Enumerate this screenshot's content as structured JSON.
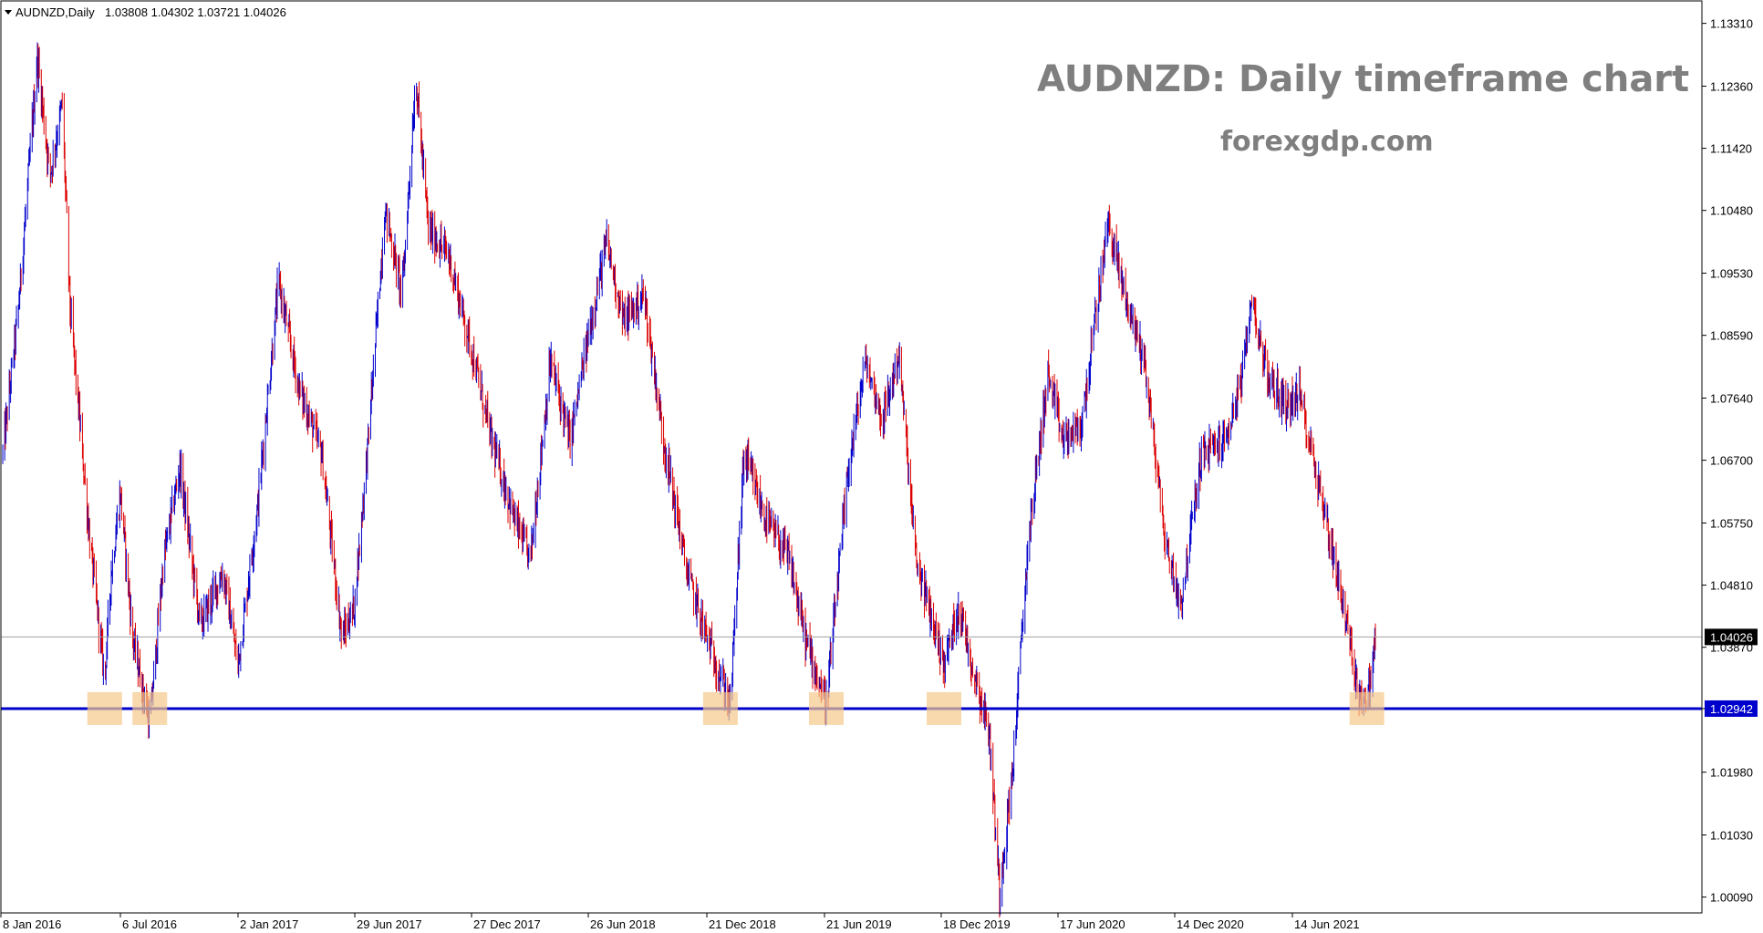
{
  "header": {
    "symbol": "AUDNZD,Daily",
    "ohlc": "1.03808 1.04302 1.03721 1.04026"
  },
  "annotation": {
    "title": "AUDNZD: Daily timeframe chart",
    "subtitle": "forexgdp.com"
  },
  "colors": {
    "bull": "#0000cc",
    "bear": "#dd0000",
    "support_line": "#0000cc",
    "current_line": "#a0a0a0",
    "highlight": "#f5c98a",
    "title_gray": "#7f7f7f"
  },
  "chart_data": {
    "type": "candlestick",
    "symbol": "AUDNZD",
    "timeframe": "Daily",
    "ylim": [
      0.9985,
      1.1365
    ],
    "y_ticks": [
      "1.13310",
      "1.12360",
      "1.11420",
      "1.10480",
      "1.09530",
      "1.08590",
      "1.07640",
      "1.06700",
      "1.05750",
      "1.04810",
      "1.03870",
      "1.02942",
      "1.01980",
      "1.01030",
      "1.00090"
    ],
    "x_ticks": [
      "8 Jan 2016",
      "6 Jul 2016",
      "2 Jan 2017",
      "29 Jun 2017",
      "27 Dec 2017",
      "26 Jun 2018",
      "21 Dec 2018",
      "21 Jun 2019",
      "18 Dec 2019",
      "17 Jun 2020",
      "14 Dec 2020",
      "14 Jun 2021"
    ],
    "current_price": {
      "value": 1.04026,
      "label": "1.04026"
    },
    "support_level": {
      "value": 1.02942,
      "label": "1.02942"
    },
    "price_path": [
      {
        "date": "2016-01-08",
        "price": 1.068
      },
      {
        "date": "2016-02-01",
        "price": 1.09
      },
      {
        "date": "2016-03-01",
        "price": 1.128
      },
      {
        "date": "2016-03-20",
        "price": 1.11
      },
      {
        "date": "2016-04-08",
        "price": 1.121
      },
      {
        "date": "2016-04-20",
        "price": 1.09
      },
      {
        "date": "2016-05-20",
        "price": 1.055
      },
      {
        "date": "2016-06-12",
        "price": 1.034
      },
      {
        "date": "2016-06-22",
        "price": 1.05
      },
      {
        "date": "2016-07-06",
        "price": 1.062
      },
      {
        "date": "2016-07-25",
        "price": 1.04
      },
      {
        "date": "2016-08-20",
        "price": 1.027
      },
      {
        "date": "2016-09-10",
        "price": 1.052
      },
      {
        "date": "2016-10-05",
        "price": 1.066
      },
      {
        "date": "2016-11-05",
        "price": 1.042
      },
      {
        "date": "2016-12-10",
        "price": 1.05
      },
      {
        "date": "2017-01-02",
        "price": 1.036
      },
      {
        "date": "2017-02-01",
        "price": 1.06
      },
      {
        "date": "2017-03-05",
        "price": 1.094
      },
      {
        "date": "2017-04-05",
        "price": 1.078
      },
      {
        "date": "2017-05-10",
        "price": 1.068
      },
      {
        "date": "2017-06-10",
        "price": 1.04
      },
      {
        "date": "2017-06-29",
        "price": 1.045
      },
      {
        "date": "2017-07-20",
        "price": 1.07
      },
      {
        "date": "2017-08-15",
        "price": 1.105
      },
      {
        "date": "2017-09-10",
        "price": 1.092
      },
      {
        "date": "2017-10-01",
        "price": 1.125
      },
      {
        "date": "2017-10-20",
        "price": 1.102
      },
      {
        "date": "2017-11-20",
        "price": 1.098
      },
      {
        "date": "2017-12-27",
        "price": 1.083
      },
      {
        "date": "2018-01-25",
        "price": 1.07
      },
      {
        "date": "2018-03-01",
        "price": 1.058
      },
      {
        "date": "2018-03-25",
        "price": 1.052
      },
      {
        "date": "2018-04-25",
        "price": 1.082
      },
      {
        "date": "2018-05-25",
        "price": 1.07
      },
      {
        "date": "2018-06-26",
        "price": 1.088
      },
      {
        "date": "2018-07-20",
        "price": 1.1
      },
      {
        "date": "2018-08-15",
        "price": 1.088
      },
      {
        "date": "2018-09-15",
        "price": 1.092
      },
      {
        "date": "2018-10-15",
        "price": 1.07
      },
      {
        "date": "2018-11-20",
        "price": 1.05
      },
      {
        "date": "2018-12-21",
        "price": 1.04
      },
      {
        "date": "2019-01-25",
        "price": 1.03
      },
      {
        "date": "2019-02-15",
        "price": 1.068
      },
      {
        "date": "2019-03-20",
        "price": 1.058
      },
      {
        "date": "2019-04-25",
        "price": 1.052
      },
      {
        "date": "2019-05-20",
        "price": 1.04
      },
      {
        "date": "2019-06-21",
        "price": 1.03
      },
      {
        "date": "2019-07-25",
        "price": 1.066
      },
      {
        "date": "2019-08-20",
        "price": 1.082
      },
      {
        "date": "2019-09-15",
        "price": 1.073
      },
      {
        "date": "2019-10-10",
        "price": 1.083
      },
      {
        "date": "2019-11-05",
        "price": 1.052
      },
      {
        "date": "2019-12-18",
        "price": 1.036
      },
      {
        "date": "2020-01-10",
        "price": 1.045
      },
      {
        "date": "2020-01-30",
        "price": 1.036
      },
      {
        "date": "2020-02-25",
        "price": 1.026
      },
      {
        "date": "2020-03-12",
        "price": 1.002
      },
      {
        "date": "2020-04-01",
        "price": 1.02
      },
      {
        "date": "2020-04-25",
        "price": 1.055
      },
      {
        "date": "2020-05-25",
        "price": 1.08
      },
      {
        "date": "2020-06-17",
        "price": 1.07
      },
      {
        "date": "2020-07-15",
        "price": 1.072
      },
      {
        "date": "2020-08-25",
        "price": 1.103
      },
      {
        "date": "2020-09-20",
        "price": 1.092
      },
      {
        "date": "2020-10-20",
        "price": 1.082
      },
      {
        "date": "2020-11-20",
        "price": 1.055
      },
      {
        "date": "2020-12-14",
        "price": 1.045
      },
      {
        "date": "2021-01-15",
        "price": 1.068
      },
      {
        "date": "2021-02-20",
        "price": 1.07
      },
      {
        "date": "2021-03-20",
        "price": 1.08
      },
      {
        "date": "2021-04-01",
        "price": 1.092
      },
      {
        "date": "2021-04-25",
        "price": 1.08
      },
      {
        "date": "2021-05-25",
        "price": 1.075
      },
      {
        "date": "2021-06-14",
        "price": 1.077
      },
      {
        "date": "2021-07-10",
        "price": 1.065
      },
      {
        "date": "2021-08-10",
        "price": 1.05
      },
      {
        "date": "2021-08-20",
        "price": 1.045
      },
      {
        "date": "2021-09-10",
        "price": 1.033
      },
      {
        "date": "2021-09-25",
        "price": 1.03
      },
      {
        "date": "2021-10-08",
        "price": 1.04
      }
    ],
    "support_touches": [
      "2016-06-12",
      "2016-08-20",
      "2019-01-10",
      "2019-06-21",
      "2019-12-18",
      "2021-09-25"
    ]
  }
}
